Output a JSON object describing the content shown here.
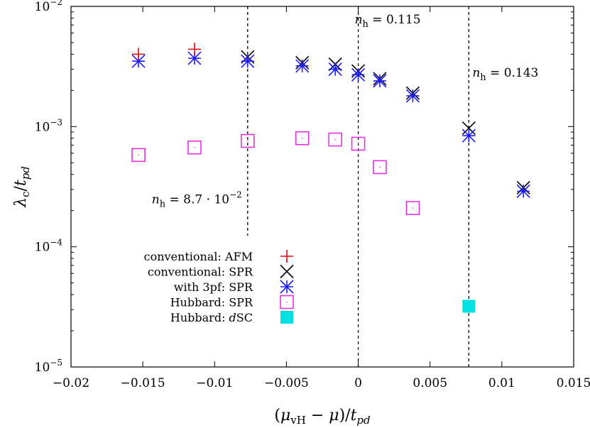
{
  "chart_data": {
    "type": "scatter",
    "xlabel": "(μvH − μ)/tpd",
    "ylabel": "λc/tpd",
    "xlim": [
      -0.02,
      0.015
    ],
    "ylim": [
      1e-05,
      0.01
    ],
    "yscale": "log",
    "grid": false,
    "legend_position": "bottom-left",
    "x_ticks": [
      -0.02,
      -0.015,
      -0.01,
      -0.005,
      0,
      0.005,
      0.01,
      0.015
    ],
    "x_tick_labels": [
      "−0.02",
      "−0.015",
      "−0.01",
      "−0.005",
      "0",
      "0.005",
      "0.01",
      "0.015"
    ],
    "y_ticks": [
      1e-05,
      0.0001,
      0.001,
      0.01
    ],
    "y_tick_labels": [
      {
        "base": "10",
        "exp": "−5"
      },
      {
        "base": "10",
        "exp": "−4"
      },
      {
        "base": "10",
        "exp": "−3"
      },
      {
        "base": "10",
        "exp": "−2"
      }
    ],
    "vlines": [
      -0.0077,
      0.0,
      0.0077
    ],
    "annotations": [
      {
        "text": "nh = 8.7 · 10−2",
        "x": -0.0077,
        "y": 0.00023
      },
      {
        "text": "nh = 0.115",
        "x": 0.0,
        "y": 0.0072
      },
      {
        "text": "nh = 0.143",
        "x": 0.0077,
        "y": 0.0026
      }
    ],
    "series": [
      {
        "name": "conventional: AFM",
        "marker": "plus",
        "color": "#e8000b",
        "points": [
          [
            -0.0153,
            0.004
          ],
          [
            -0.0114,
            0.0044
          ]
        ]
      },
      {
        "name": "conventional: SPR",
        "marker": "x",
        "color": "#000000",
        "points": [
          [
            -0.0077,
            0.0038
          ],
          [
            -0.0039,
            0.0034
          ],
          [
            -0.0016,
            0.0033
          ],
          [
            0.0,
            0.0029
          ],
          [
            0.0015,
            0.0025
          ],
          [
            0.0038,
            0.0019
          ],
          [
            0.0077,
            0.00097
          ],
          [
            0.0115,
            0.00031
          ]
        ]
      },
      {
        "name": "with 3pf: SPR",
        "marker": "star",
        "color": "#1a1aff",
        "points": [
          [
            -0.0153,
            0.0035
          ],
          [
            -0.0114,
            0.0037
          ],
          [
            -0.0077,
            0.0035
          ],
          [
            -0.0039,
            0.0032
          ],
          [
            -0.0016,
            0.003
          ],
          [
            0.0,
            0.0027
          ],
          [
            0.0015,
            0.0024
          ],
          [
            0.0038,
            0.0018
          ],
          [
            0.0077,
            0.00084
          ],
          [
            0.0115,
            0.00029
          ]
        ]
      },
      {
        "name": "Hubbard: SPR",
        "marker": "open-square",
        "color": "#e632e6",
        "points": [
          [
            -0.0153,
            0.00058
          ],
          [
            -0.0114,
            0.00067
          ],
          [
            -0.0077,
            0.00076
          ],
          [
            -0.0039,
            0.0008
          ],
          [
            -0.0016,
            0.00078
          ],
          [
            0.0,
            0.00072
          ],
          [
            0.0015,
            0.00046
          ],
          [
            0.0038,
            0.00021
          ]
        ]
      },
      {
        "name": "Hubbard: dSC",
        "marker": "filled-square",
        "color": "#00e0e0",
        "points": [
          [
            0.0077,
            3.2e-05
          ]
        ]
      }
    ]
  }
}
